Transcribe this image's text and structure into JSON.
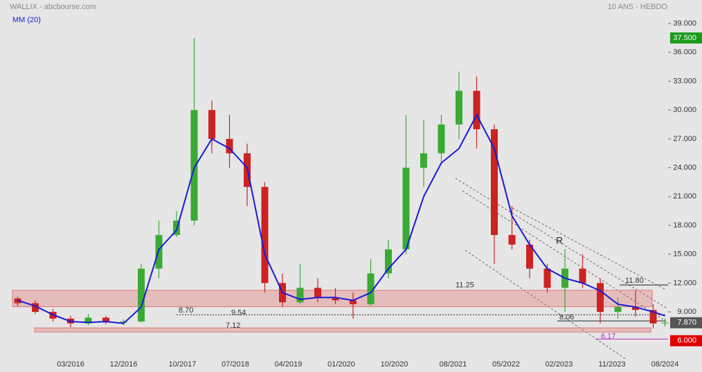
{
  "chart_data": {
    "type": "candlestick",
    "title": "WALLIX - abcbourse.com",
    "subtitle": "10 ANS - HEBDO",
    "x": [
      "06/2015",
      "09/2015",
      "12/2015",
      "03/2016",
      "06/2016",
      "09/2016",
      "12/2016",
      "03/2017",
      "06/2017",
      "09/2017",
      "12/2017",
      "03/2018",
      "06/2018",
      "09/2018",
      "12/2018",
      "03/2019",
      "06/2019",
      "09/2019",
      "12/2019",
      "03/2020",
      "06/2020",
      "09/2020",
      "12/2020",
      "03/2021",
      "06/2021",
      "09/2021",
      "12/2021",
      "03/2022",
      "06/2022",
      "09/2022",
      "12/2022",
      "03/2023",
      "06/2023",
      "09/2023",
      "12/2023",
      "03/2024",
      "06/2024",
      "08/2024"
    ],
    "open": [
      10.4,
      9.9,
      9.0,
      8.3,
      7.8,
      8.4,
      7.9,
      8.0,
      13.5,
      17.0,
      18.5,
      30.0,
      27.0,
      25.5,
      22.0,
      12.0,
      10.0,
      11.5,
      10.5,
      10.2,
      9.8,
      13.0,
      15.5,
      24.0,
      25.5,
      28.5,
      32.0,
      28.0,
      17.0,
      16.0,
      13.5,
      11.5,
      13.5,
      12.0,
      9.0,
      9.5,
      9.2,
      7.8
    ],
    "high": [
      10.6,
      10.2,
      9.3,
      8.6,
      8.8,
      8.6,
      8.2,
      14.0,
      18.5,
      19.5,
      37.5,
      31.0,
      29.5,
      26.5,
      22.5,
      13.0,
      14.0,
      12.5,
      11.5,
      11.0,
      14.5,
      16.5,
      29.5,
      29.0,
      29.5,
      34.0,
      33.5,
      28.5,
      20.0,
      16.5,
      14.0,
      15.5,
      15.0,
      12.5,
      10.5,
      11.2,
      9.8,
      8.3
    ],
    "low": [
      9.6,
      8.8,
      8.0,
      7.4,
      7.6,
      7.7,
      7.6,
      7.9,
      12.5,
      16.8,
      18.0,
      25.5,
      24.0,
      20.0,
      11.0,
      9.5,
      9.8,
      10.0,
      9.8,
      8.3,
      9.6,
      12.5,
      15.0,
      22.0,
      24.5,
      27.0,
      26.0,
      14.0,
      15.5,
      12.5,
      11.0,
      9.0,
      11.5,
      7.8,
      8.3,
      8.5,
      7.3,
      7.5
    ],
    "close": [
      9.9,
      9.0,
      8.3,
      7.8,
      8.4,
      7.9,
      8.0,
      13.5,
      17.0,
      18.5,
      30.0,
      27.0,
      25.5,
      22.0,
      12.0,
      10.0,
      11.5,
      10.5,
      10.2,
      9.8,
      13.0,
      15.5,
      24.0,
      25.5,
      28.5,
      32.0,
      28.0,
      17.0,
      16.0,
      13.5,
      11.5,
      13.5,
      12.0,
      9.0,
      9.5,
      9.2,
      7.8,
      7.87
    ],
    "up_color": "#3aaa35",
    "down_color": "#cc2222",
    "series": [
      {
        "name": "MM (20)",
        "color": "#1a1ad8",
        "values": [
          10.2,
          9.6,
          8.7,
          8.0,
          7.9,
          8.0,
          7.8,
          9.5,
          15.5,
          17.5,
          24,
          27,
          26,
          24,
          15,
          11,
          10.3,
          10.5,
          10.5,
          10.2,
          11,
          13.5,
          15.5,
          21,
          24.5,
          26,
          29.5,
          26,
          19,
          16,
          13.5,
          12.5,
          12,
          11.2,
          9.8,
          9.5,
          9.0,
          8.6
        ]
      }
    ],
    "ylim": [
      4.76,
      41.45
    ],
    "yticks": [
      {
        "value": 9,
        "label": "9.000"
      },
      {
        "value": 12,
        "label": "12.000"
      },
      {
        "value": 15,
        "label": "15.000"
      },
      {
        "value": 18,
        "label": "18.000"
      },
      {
        "value": 21,
        "label": "21.000"
      },
      {
        "value": 24,
        "label": "24.000"
      },
      {
        "value": 27,
        "label": "27.000"
      },
      {
        "value": 30,
        "label": "30.000"
      },
      {
        "value": 33,
        "label": "33.000"
      },
      {
        "value": 36,
        "label": "36.000"
      },
      {
        "value": 39,
        "label": "39.000"
      }
    ],
    "xticks": [
      "03/2016",
      "12/2016",
      "10/2017",
      "07/2018",
      "04/2019",
      "01/2020",
      "10/2020",
      "08/2021",
      "05/2022",
      "02/2023",
      "11/2023",
      "08/2024"
    ],
    "price_tags": [
      {
        "value": 37.5,
        "label": "37.500",
        "color": "#1a9a1a"
      },
      {
        "value": 7.87,
        "label": "7.870",
        "color": "#555555"
      },
      {
        "value": 6.0,
        "label": "6.000",
        "color": "#e00000"
      }
    ],
    "levels": [
      {
        "value": 11.25,
        "label": "11.25"
      },
      {
        "value": 9.54,
        "label": "9.54"
      },
      {
        "value": 8.7,
        "label": "8.70"
      },
      {
        "value": 7.12,
        "label": "7.12"
      },
      {
        "value": 8.06,
        "label": "8.06"
      },
      {
        "value": 11.8,
        "label": "11.80"
      },
      {
        "value": 6.17,
        "label": "6.17"
      }
    ],
    "annotations": [
      "R"
    ]
  }
}
